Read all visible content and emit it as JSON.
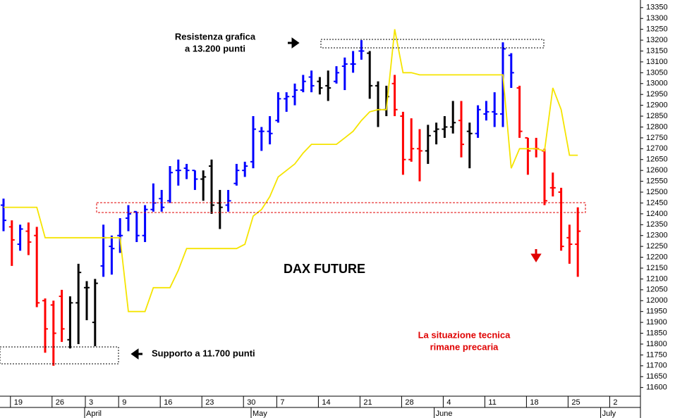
{
  "chart_data": {
    "type": "ohlc",
    "title": "DAX FUTURE",
    "annotations": {
      "resistance_line1": "Resistenza grafica",
      "resistance_line2": "a 13.200 punti",
      "support": "Supporto a 11.700 punti",
      "outlook_line1": "La situazione tecnica",
      "outlook_line2": "rimane precaria"
    },
    "categories": [
      null,
      "19",
      null,
      null,
      null,
      null,
      "26",
      null,
      null,
      null,
      "3",
      null,
      null,
      null,
      "9",
      null,
      null,
      null,
      null,
      "16",
      null,
      null,
      null,
      null,
      "23",
      null,
      null,
      null,
      null,
      "30",
      null,
      null,
      null,
      "7",
      null,
      null,
      null,
      null,
      "14",
      null,
      null,
      null,
      null,
      "21",
      null,
      null,
      null,
      null,
      "28",
      null,
      null,
      null,
      null,
      "4",
      null,
      null,
      null,
      null,
      "11",
      null,
      null,
      null,
      null,
      "18",
      null,
      null,
      null,
      null,
      "25",
      null,
      null,
      null,
      null,
      "2"
    ],
    "months": [
      null,
      null,
      null,
      null,
      null,
      null,
      null,
      null,
      null,
      null,
      "April",
      null,
      null,
      null,
      null,
      null,
      null,
      null,
      null,
      null,
      null,
      null,
      null,
      null,
      null,
      null,
      null,
      null,
      null,
      null,
      "May",
      null,
      null,
      null,
      null,
      null,
      null,
      null,
      null,
      null,
      null,
      null,
      null,
      null,
      null,
      null,
      null,
      null,
      null,
      null,
      null,
      null,
      "June",
      null,
      null,
      null,
      null,
      null,
      null,
      null,
      null,
      null,
      null,
      null,
      null,
      null,
      null,
      null,
      null,
      null,
      null,
      null,
      "July"
    ],
    "open": [
      12440,
      12340,
      12260,
      12320,
      12300,
      12000,
      11980,
      12020,
      11820,
      11990,
      12060,
      11900,
      12160,
      12250,
      12300,
      12380,
      12410,
      12300,
      12420,
      12470,
      12460,
      12600,
      12610,
      12600,
      12560,
      12620,
      12450,
      12440,
      12540,
      12600,
      12640,
      12780,
      12780,
      12830,
      12930,
      12940,
      12970,
      13030,
      13010,
      12990,
      13010,
      13080,
      13090,
      13150,
      13140,
      12990,
      12880,
      13000,
      12850,
      12650,
      12700,
      12690,
      12780,
      12790,
      12800,
      12830,
      12780,
      12770,
      12860,
      12870,
      12860,
      13130,
      12980,
      12750,
      12700,
      12690,
      12520,
      12500,
      12290,
      12260,
      null,
      null,
      null,
      null
    ],
    "high": [
      12470,
      12370,
      12350,
      12360,
      12340,
      12010,
      12000,
      12050,
      12020,
      12170,
      12090,
      12100,
      12350,
      12300,
      12380,
      12440,
      12410,
      12440,
      12540,
      12510,
      12620,
      12650,
      12630,
      12600,
      12600,
      12650,
      12510,
      12510,
      12630,
      12640,
      12850,
      12800,
      12850,
      12960,
      12960,
      13000,
      13040,
      13060,
      13030,
      13060,
      13080,
      13120,
      13150,
      13200,
      13150,
      13010,
      12990,
      13040,
      12870,
      12840,
      12790,
      12810,
      12820,
      12850,
      12920,
      12920,
      12820,
      12900,
      12920,
      12960,
      13190,
      13140,
      12990,
      12750,
      12750,
      12700,
      12590,
      12520,
      12350,
      12430,
      null,
      null,
      null,
      null
    ],
    "low": [
      12320,
      12160,
      12230,
      12210,
      11970,
      11760,
      11700,
      11810,
      11780,
      11800,
      11910,
      11790,
      12110,
      12120,
      12220,
      12320,
      12270,
      12270,
      12410,
      12410,
      12450,
      12530,
      12560,
      12510,
      12460,
      12400,
      12330,
      12410,
      12530,
      12570,
      12610,
      12690,
      12720,
      12820,
      12870,
      12900,
      12960,
      12960,
      12950,
      12920,
      13000,
      12970,
      13050,
      13110,
      12930,
      12800,
      12850,
      12850,
      12580,
      12640,
      12550,
      12630,
      12720,
      12750,
      12770,
      12660,
      12610,
      12750,
      12830,
      12800,
      12800,
      12980,
      12750,
      12580,
      12660,
      12440,
      12480,
      12230,
      12170,
      12110,
      null,
      null,
      null,
      null
    ],
    "close": [
      12370,
      12280,
      12330,
      12270,
      11990,
      11870,
      11850,
      11870,
      11990,
      12130,
      12060,
      12080,
      12290,
      12240,
      12300,
      12400,
      12300,
      12420,
      12450,
      12430,
      12590,
      12600,
      12600,
      12560,
      12570,
      12440,
      12430,
      12460,
      12600,
      12620,
      12790,
      12780,
      12770,
      12930,
      12940,
      12970,
      13010,
      12990,
      12980,
      12980,
      13050,
      13090,
      13090,
      13150,
      12990,
      12880,
      12940,
      12880,
      12650,
      12700,
      12690,
      12760,
      12790,
      12800,
      12820,
      12720,
      12770,
      12880,
      12870,
      12860,
      13160,
      13050,
      12780,
      12690,
      12700,
      12460,
      12520,
      12250,
      12260,
      12320,
      null,
      null,
      null,
      null
    ],
    "bar_colors": [
      "#0000ff",
      "#ff0000",
      "#0000ff",
      "#ff0000",
      "#ff0000",
      "#ff0000",
      "#ff0000",
      "#ff0000",
      "#000000",
      "#000000",
      "#000000",
      "#000000",
      "#0000ff",
      "#0000ff",
      "#0000ff",
      "#0000ff",
      "#0000ff",
      "#0000ff",
      "#0000ff",
      "#0000ff",
      "#0000ff",
      "#0000ff",
      "#0000ff",
      "#0000ff",
      "#000000",
      "#000000",
      "#000000",
      "#0000ff",
      "#0000ff",
      "#0000ff",
      "#0000ff",
      "#0000ff",
      "#0000ff",
      "#0000ff",
      "#0000ff",
      "#0000ff",
      "#0000ff",
      "#0000ff",
      "#000000",
      "#000000",
      "#0000ff",
      "#0000ff",
      "#0000ff",
      "#0000ff",
      "#000000",
      "#000000",
      "#000000",
      "#ff0000",
      "#ff0000",
      "#ff0000",
      "#ff0000",
      "#000000",
      "#000000",
      "#000000",
      "#000000",
      "#ff0000",
      "#000000",
      "#0000ff",
      "#0000ff",
      "#0000ff",
      "#0000ff",
      "#0000ff",
      "#ff0000",
      "#ff0000",
      "#ff0000",
      "#ff0000",
      "#ff0000",
      "#ff0000",
      "#ff0000",
      "#ff0000",
      null,
      null,
      null,
      null
    ],
    "line": {
      "color": "#f5e400",
      "values": [
        12430,
        12430,
        12430,
        12430,
        12430,
        12290,
        12290,
        12290,
        12290,
        12290,
        12290,
        12290,
        12290,
        12290,
        12290,
        11950,
        11950,
        11950,
        12060,
        12060,
        12060,
        12140,
        12240,
        12240,
        12240,
        12240,
        12240,
        12240,
        12240,
        12260,
        12390,
        12420,
        12480,
        12570,
        12600,
        12630,
        12680,
        12720,
        12720,
        12720,
        12720,
        12750,
        12780,
        12830,
        12870,
        12880,
        12880,
        13250,
        13050,
        13050,
        13040,
        13040,
        13040,
        13040,
        13040,
        13040,
        13040,
        13040,
        13040,
        13040,
        13040,
        12610,
        12700,
        12700,
        12700,
        12690,
        12980,
        12880,
        12670,
        12670,
        null,
        null,
        null,
        null
      ]
    },
    "ylim": [
      11560,
      13385
    ],
    "yticks": [
      11600,
      11650,
      11700,
      11750,
      11800,
      11850,
      11900,
      11950,
      12000,
      12050,
      12100,
      12150,
      12200,
      12250,
      12300,
      12350,
      12400,
      12450,
      12500,
      12550,
      12600,
      12650,
      12700,
      12750,
      12800,
      12850,
      12900,
      12950,
      13000,
      13050,
      13100,
      13150,
      13200,
      13250,
      13300,
      13350
    ],
    "grid": false
  }
}
